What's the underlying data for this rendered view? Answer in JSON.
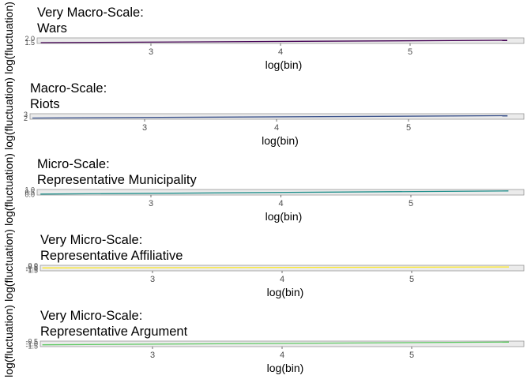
{
  "chart_data": [
    {
      "type": "line",
      "title": [
        "Very Macro-Scale:",
        "Wars"
      ],
      "xlabel": "log(bin)",
      "ylabel": "log(fluctuation)",
      "x_ticks": [
        "3",
        "4",
        "5"
      ],
      "y_ticks": [
        "1.5",
        "2.0"
      ],
      "xlim": [
        2.1,
        5.9
      ],
      "ylim": [
        1.4,
        2.1
      ],
      "grid": false,
      "series": [
        {
          "color": "#440154",
          "x": [
            2.15,
            5.75
          ],
          "y": [
            1.5,
            1.8
          ]
        }
      ]
    },
    {
      "type": "line",
      "title": [
        "Macro-Scale:",
        "Riots"
      ],
      "xlabel": "log(bin)",
      "ylabel": "log(fluctuation)",
      "x_ticks": [
        "3",
        "4",
        "5"
      ],
      "y_ticks": [
        "2",
        "3"
      ],
      "xlim": [
        2.05,
        5.9
      ],
      "ylim": [
        1.8,
        3.2
      ],
      "grid": false,
      "series": [
        {
          "color": "#3b528b",
          "x": [
            2.15,
            5.75
          ],
          "y": [
            2.1,
            2.7
          ]
        }
      ]
    },
    {
      "type": "line",
      "title": [
        "Micro-Scale:",
        "Representative Municipality"
      ],
      "xlabel": "log(bin)",
      "ylabel": "log(fluctuation)",
      "x_ticks": [
        "3",
        "4",
        "5"
      ],
      "y_ticks": [
        "0.0",
        "0.5",
        "1.0"
      ],
      "xlim": [
        2.1,
        5.9
      ],
      "ylim": [
        -0.1,
        1.1
      ],
      "grid": false,
      "series": [
        {
          "color": "#21908c",
          "x": [
            2.15,
            5.75
          ],
          "y": [
            0.1,
            0.8
          ]
        }
      ]
    },
    {
      "type": "line",
      "title": [
        "Very Micro-Scale:",
        "Representative Affiliative"
      ],
      "xlabel": "log(bin)",
      "ylabel": "log(fluctuation)",
      "x_ticks": [
        "3",
        "4",
        "5"
      ],
      "y_ticks": [
        "-1.5",
        "-1.0",
        "-0.5",
        "0.0"
      ],
      "xlim": [
        2.1,
        5.9
      ],
      "ylim": [
        -1.6,
        0.1
      ],
      "grid": false,
      "series": [
        {
          "color": "#fde725",
          "x": [
            2.15,
            5.75
          ],
          "y": [
            -0.7,
            -0.4
          ]
        }
      ]
    },
    {
      "type": "line",
      "title": [
        "Very Micro-Scale:",
        "Representative Argument"
      ],
      "xlabel": "log(bin)",
      "ylabel": "log(fluctuation)",
      "x_ticks": [
        "3",
        "4",
        "5"
      ],
      "y_ticks": [
        "-1.5",
        "-1.0",
        "-0.5"
      ],
      "xlim": [
        2.1,
        5.9
      ],
      "ylim": [
        -1.6,
        -0.4
      ],
      "grid": false,
      "series": [
        {
          "color": "#5ec962",
          "x": [
            2.15,
            5.75
          ],
          "y": [
            -1.2,
            -0.6
          ]
        }
      ]
    }
  ]
}
